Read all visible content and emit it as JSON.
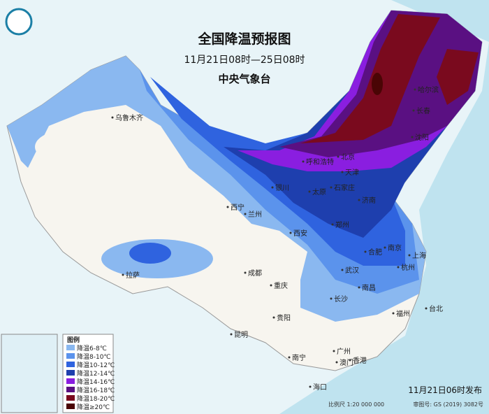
{
  "title": "全国降温预报图",
  "subtitle": "11月21日08时—25日08时",
  "agency": "中央气象台",
  "cities": [
    "乌鲁木齐",
    "哈尔滨",
    "长春",
    "沈阳",
    "呼和浩特",
    "北京",
    "天津",
    "银川",
    "石家庄",
    "太原",
    "济南",
    "西宁",
    "兰州",
    "西安",
    "郑州",
    "合肥",
    "南京",
    "上海",
    "武汉",
    "杭州",
    "拉萨",
    "成都",
    "重庆",
    "长沙",
    "南昌",
    "福州",
    "台北",
    "贵阳",
    "昆明",
    "南宁",
    "广州",
    "澳门",
    "香港",
    "海口"
  ],
  "legend": {
    "title": "图例",
    "items": [
      {
        "label": "降温6-8℃",
        "color": "#8ab8f0"
      },
      {
        "label": "降温8-10℃",
        "color": "#5b93ec"
      },
      {
        "label": "降温10-12℃",
        "color": "#2f63df"
      },
      {
        "label": "降温12-14℃",
        "color": "#1e3fae"
      },
      {
        "label": "降温14-16℃",
        "color": "#8a1ee0"
      },
      {
        "label": "降温16-18℃",
        "color": "#5a1082"
      },
      {
        "label": "降温18-20℃",
        "color": "#7a0a1e"
      },
      {
        "label": "降温≥20℃",
        "color": "#4a0505"
      }
    ]
  },
  "footer": {
    "issued": "11月21日06时发布",
    "scale": "比例尺 1:20 000 000",
    "approval": "审图号: GS (2019) 3082号"
  }
}
